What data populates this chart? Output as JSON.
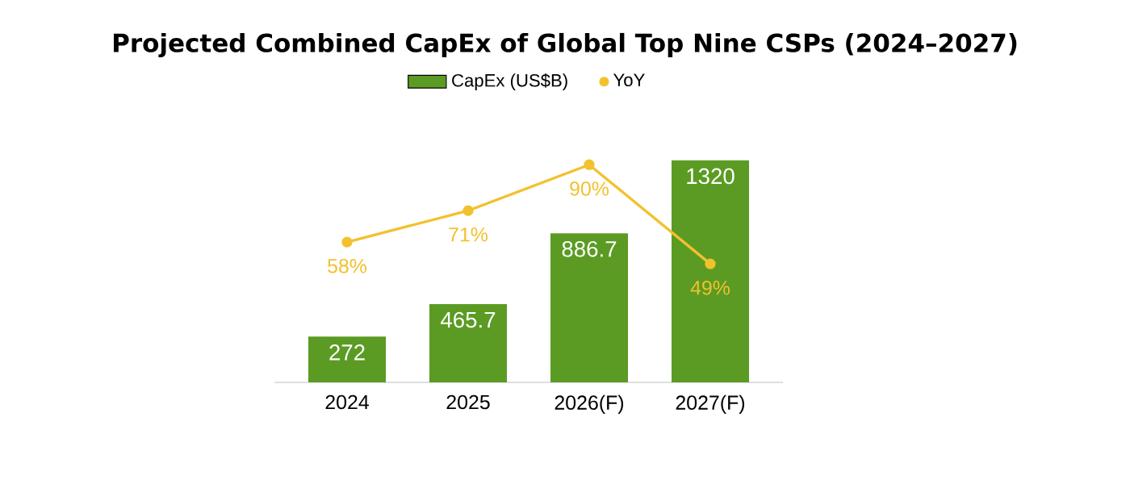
{
  "chart_data": {
    "type": "bar",
    "title": "Projected Combined CapEx of Global Top Nine CSPs (2024–2027)",
    "categories": [
      "2024",
      "2025",
      "2026(F)",
      "2027(F)"
    ],
    "legend": "top",
    "series": [
      {
        "name": "CapEx (US$B)",
        "color": "#5b9b23",
        "values": [
          272,
          465.7,
          886.7,
          1320
        ],
        "value_labels": [
          "272",
          "465.7",
          "886.7",
          "1320"
        ]
      },
      {
        "name": "YoY",
        "type": "line",
        "axis": "y2",
        "color": "#f2c12e",
        "marker": "circle",
        "values": [
          58,
          71,
          90,
          49
        ],
        "value_labels": [
          "58%",
          "71%",
          "90%",
          "49%"
        ]
      }
    ]
  }
}
